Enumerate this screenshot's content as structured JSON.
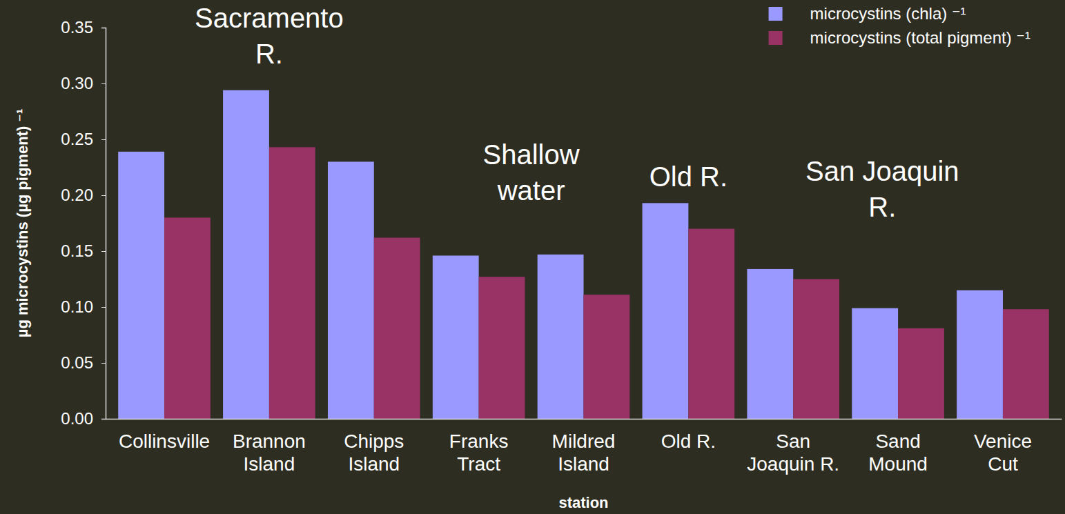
{
  "chart_data": {
    "type": "bar",
    "x_label": "station",
    "y_label": "µg microcystins (µg pigment) ⁻¹",
    "categories": [
      "Collinsville",
      "Brannon Island",
      "Chipps Island",
      "Franks Tract",
      "Mildred Island",
      "Old R.",
      "San Joaquin R.",
      "Sand Mound",
      "Venice Cut"
    ],
    "series": [
      {
        "name": "microcystins (chla) ⁻¹",
        "color": "#9999ff",
        "values": [
          0.239,
          0.294,
          0.23,
          0.146,
          0.147,
          0.193,
          0.134,
          0.099,
          0.115
        ]
      },
      {
        "name": "microcystins (total pigment) ⁻¹",
        "color": "#993366",
        "values": [
          0.18,
          0.243,
          0.162,
          0.127,
          0.111,
          0.17,
          0.125,
          0.081,
          0.098
        ]
      }
    ],
    "ylim": [
      0,
      0.35
    ],
    "yticks": [
      {
        "value": 0,
        "label": "0.00"
      },
      0.05,
      {
        "value": 0.1,
        "label": "0.10"
      },
      0.15,
      {
        "value": 0.2,
        "label": "0.20"
      },
      0.25,
      {
        "value": 0.3,
        "label": "0.30"
      },
      0.35
    ],
    "annotations": [
      "Sacramento R.",
      "Shallow water",
      "Old R.",
      "San Joaquin R."
    ],
    "legend": "upper right",
    "grid": false,
    "data_labels": false
  }
}
